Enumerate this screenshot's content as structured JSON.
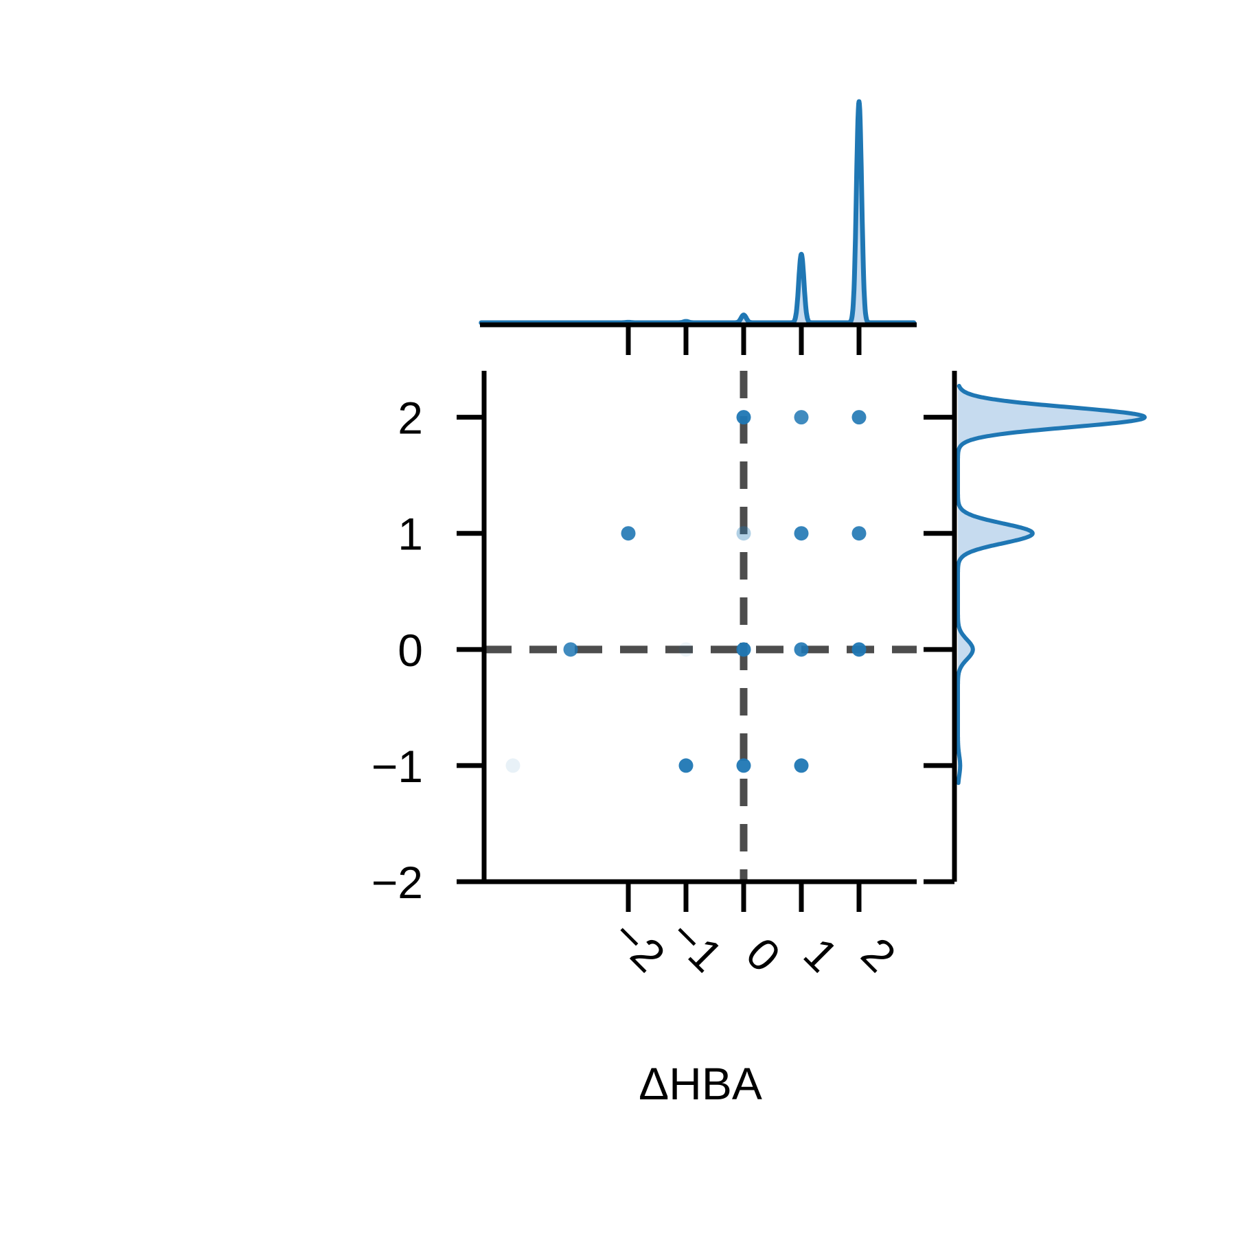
{
  "chart_data": {
    "type": "scatter",
    "title": "",
    "xlabel": "ΔHBA",
    "ylabel": "",
    "xlim": [
      -4.5,
      3.0
    ],
    "ylim": [
      -2.0,
      2.4
    ],
    "x_ticks": [
      -2,
      -1,
      0,
      1,
      2
    ],
    "x_tick_labels": [
      "−2",
      "−1",
      "0",
      "1",
      "2"
    ],
    "y_ticks": [
      -2,
      -1,
      0,
      1,
      2
    ],
    "y_tick_labels": [
      "−2",
      "−1",
      "0",
      "1",
      "2"
    ],
    "grid": false,
    "legend": "none",
    "colors": {
      "points": "#1f77b4",
      "kde_line": "#1f77b4",
      "kde_fill": "#c6dbef",
      "reference_lines": "#4d4d4d",
      "axes": "#000000"
    },
    "reference_lines": {
      "x": 0,
      "y": 0,
      "style": "dashed"
    },
    "points": [
      {
        "x": 0,
        "y": 2,
        "opacity": 0.95
      },
      {
        "x": 1,
        "y": 2,
        "opacity": 0.85
      },
      {
        "x": 2,
        "y": 2,
        "opacity": 0.9
      },
      {
        "x": -2,
        "y": 1,
        "opacity": 0.9
      },
      {
        "x": 0,
        "y": 1,
        "opacity": 0.35
      },
      {
        "x": 1,
        "y": 1,
        "opacity": 0.9
      },
      {
        "x": 2,
        "y": 1,
        "opacity": 0.9
      },
      {
        "x": -3,
        "y": 0,
        "opacity": 0.85
      },
      {
        "x": -1,
        "y": 0,
        "opacity": 0.08
      },
      {
        "x": 0,
        "y": 0,
        "opacity": 0.95
      },
      {
        "x": 1,
        "y": 0,
        "opacity": 0.9
      },
      {
        "x": 2,
        "y": 0,
        "opacity": 0.95
      },
      {
        "x": -4,
        "y": -1,
        "opacity": 0.1
      },
      {
        "x": -1,
        "y": -1,
        "opacity": 0.95
      },
      {
        "x": 0,
        "y": -1,
        "opacity": 0.95
      },
      {
        "x": 1,
        "y": -1,
        "opacity": 0.95
      }
    ],
    "marginal_x": {
      "peaks": [
        {
          "x": -2,
          "height": 0.002
        },
        {
          "x": -1,
          "height": 0.006
        },
        {
          "x": 0,
          "height": 0.035
        },
        {
          "x": 1,
          "height": 0.31
        },
        {
          "x": 2,
          "height": 1.0
        }
      ]
    },
    "marginal_y": {
      "peaks": [
        {
          "y": 2,
          "height": 1.0
        },
        {
          "y": 1,
          "height": 0.4
        },
        {
          "y": 0,
          "height": 0.08
        },
        {
          "y": -1,
          "height": 0.012
        }
      ]
    }
  }
}
